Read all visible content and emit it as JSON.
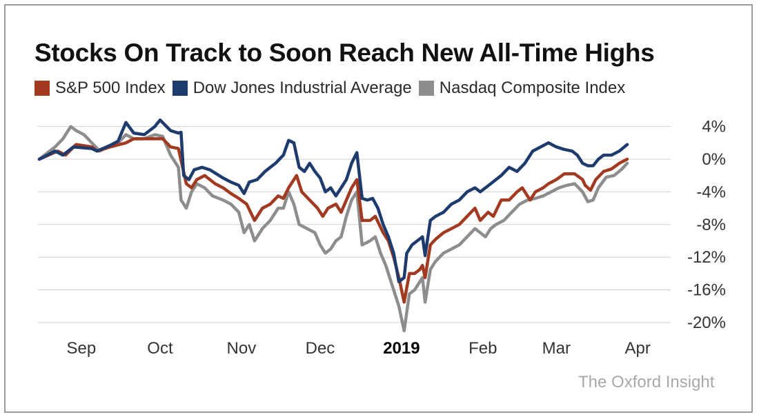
{
  "chart_data": {
    "type": "line",
    "title": "Stocks On Track to Soon Reach New All-Time Highs",
    "xlabel": "",
    "ylabel": "",
    "ylim": [
      -21,
      5
    ],
    "yticks": [
      4,
      0,
      -4,
      -8,
      -12,
      -16,
      -20
    ],
    "ytick_labels": [
      "4%",
      "0%",
      "-4%",
      "-8%",
      "-12%",
      "-16%",
      "-20%"
    ],
    "xlim": [
      0,
      224
    ],
    "xticks": [
      {
        "label": "Sep",
        "x": 16,
        "bold": false
      },
      {
        "label": "Oct",
        "x": 46,
        "bold": false
      },
      {
        "label": "Nov",
        "x": 77,
        "bold": false
      },
      {
        "label": "Dec",
        "x": 107,
        "bold": false
      },
      {
        "label": "2019",
        "x": 138,
        "bold": true
      },
      {
        "label": "Feb",
        "x": 169,
        "bold": false
      },
      {
        "label": "Mar",
        "x": 197,
        "bold": false
      },
      {
        "label": "Apr",
        "x": 228,
        "bold": false
      }
    ],
    "grid": true,
    "legend_position": "top-left",
    "series": [
      {
        "name": "S&P 500 Index",
        "color": "#a13a20",
        "points": [
          [
            0,
            0
          ],
          [
            7,
            1
          ],
          [
            10,
            0.5
          ],
          [
            14,
            1.8
          ],
          [
            20,
            1.5
          ],
          [
            22,
            1
          ],
          [
            27,
            1.5
          ],
          [
            33,
            2
          ],
          [
            36,
            2.5
          ],
          [
            43,
            2.5
          ],
          [
            47,
            2.5
          ],
          [
            50,
            1.5
          ],
          [
            53,
            1.3
          ],
          [
            56,
            -3
          ],
          [
            58,
            -3.5
          ],
          [
            60,
            -2.5
          ],
          [
            63,
            -2
          ],
          [
            67,
            -3
          ],
          [
            70,
            -3.5
          ],
          [
            73,
            -4.2
          ],
          [
            76,
            -4.8
          ],
          [
            79,
            -5.5
          ],
          [
            82,
            -7.5
          ],
          [
            85,
            -6
          ],
          [
            88,
            -5.5
          ],
          [
            91,
            -4.5
          ],
          [
            93,
            -4.8
          ],
          [
            95,
            -3.5
          ],
          [
            98,
            -2
          ],
          [
            100,
            -4
          ],
          [
            103,
            -5
          ],
          [
            106,
            -6
          ],
          [
            108,
            -7
          ],
          [
            110,
            -6
          ],
          [
            113,
            -5.5
          ],
          [
            115,
            -6.5
          ],
          [
            117,
            -5
          ],
          [
            119,
            -3.5
          ],
          [
            121,
            -2.5
          ],
          [
            123,
            -7.5
          ],
          [
            126,
            -7.5
          ],
          [
            128,
            -7
          ],
          [
            131,
            -9
          ],
          [
            133,
            -10
          ],
          [
            135,
            -12
          ],
          [
            137,
            -14.5
          ],
          [
            139,
            -17.5
          ],
          [
            141,
            -14
          ],
          [
            143,
            -14
          ],
          [
            145,
            -13.5
          ],
          [
            146,
            -13
          ],
          [
            147,
            -14.5
          ],
          [
            149,
            -10.5
          ],
          [
            151,
            -9.8
          ],
          [
            154,
            -9
          ],
          [
            157,
            -8.5
          ],
          [
            160,
            -8
          ],
          [
            163,
            -7
          ],
          [
            166,
            -6
          ],
          [
            168,
            -7.5
          ],
          [
            171,
            -6.5
          ],
          [
            173,
            -7
          ],
          [
            176,
            -5
          ],
          [
            179,
            -5
          ],
          [
            182,
            -4
          ],
          [
            184,
            -3.5
          ],
          [
            187,
            -5
          ],
          [
            189,
            -4
          ],
          [
            192,
            -3.5
          ],
          [
            194,
            -3
          ],
          [
            197,
            -2.5
          ],
          [
            200,
            -1.8
          ],
          [
            204,
            -1.8
          ],
          [
            207,
            -2.5
          ],
          [
            208,
            -3.2
          ],
          [
            210,
            -3.8
          ],
          [
            212,
            -2.5
          ],
          [
            215,
            -1.5
          ],
          [
            218,
            -1.2
          ],
          [
            221,
            -0.5
          ],
          [
            224,
            0
          ]
        ]
      },
      {
        "name": "Dow Jones Industrial Average",
        "color": "#1d3b6c",
        "points": [
          [
            0,
            0
          ],
          [
            6,
            1
          ],
          [
            9,
            0.5
          ],
          [
            13,
            1.5
          ],
          [
            20,
            1.3
          ],
          [
            22,
            1
          ],
          [
            27,
            1.7
          ],
          [
            30,
            2.2
          ],
          [
            33,
            4.5
          ],
          [
            36,
            3.2
          ],
          [
            40,
            3
          ],
          [
            44,
            4
          ],
          [
            46,
            4.8
          ],
          [
            50,
            3.5
          ],
          [
            53,
            3.2
          ],
          [
            54,
            3.3
          ],
          [
            55,
            -2
          ],
          [
            57,
            -2.5
          ],
          [
            59,
            -1.3
          ],
          [
            62,
            -1
          ],
          [
            65,
            -1.3
          ],
          [
            70,
            -2.3
          ],
          [
            73,
            -2.8
          ],
          [
            76,
            -3.2
          ],
          [
            78,
            -4.2
          ],
          [
            80,
            -2.8
          ],
          [
            83,
            -2.5
          ],
          [
            86,
            -1.5
          ],
          [
            88,
            -1
          ],
          [
            90,
            -0.5
          ],
          [
            93,
            0.5
          ],
          [
            95,
            2.3
          ],
          [
            97,
            2
          ],
          [
            99,
            -1
          ],
          [
            101,
            -1.5
          ],
          [
            103,
            -0.5
          ],
          [
            105,
            -1.5
          ],
          [
            107,
            -2.3
          ],
          [
            109,
            -4
          ],
          [
            111,
            -3.5
          ],
          [
            113,
            -4.5
          ],
          [
            115,
            -3.5
          ],
          [
            117,
            -2.5
          ],
          [
            119,
            -0.5
          ],
          [
            121,
            0.8
          ],
          [
            123,
            -4.8
          ],
          [
            125,
            -5
          ],
          [
            127,
            -4.8
          ],
          [
            129,
            -6
          ],
          [
            131,
            -8
          ],
          [
            133,
            -9.5
          ],
          [
            135,
            -11.5
          ],
          [
            137,
            -15
          ],
          [
            139,
            -14.5
          ],
          [
            140,
            -11.5
          ],
          [
            142,
            -10.5
          ],
          [
            144,
            -10
          ],
          [
            146,
            -9.5
          ],
          [
            147,
            -11.8
          ],
          [
            149,
            -7.5
          ],
          [
            151,
            -7
          ],
          [
            154,
            -6.5
          ],
          [
            157,
            -5.5
          ],
          [
            160,
            -5
          ],
          [
            163,
            -4
          ],
          [
            166,
            -3.5
          ],
          [
            168,
            -4
          ],
          [
            170,
            -3.5
          ],
          [
            172,
            -3
          ],
          [
            174,
            -2.5
          ],
          [
            176,
            -2
          ],
          [
            179,
            -1
          ],
          [
            182,
            -1.5
          ],
          [
            185,
            -0.5
          ],
          [
            188,
            1
          ],
          [
            191,
            1.5
          ],
          [
            194,
            2
          ],
          [
            197,
            1.5
          ],
          [
            200,
            1.2
          ],
          [
            203,
            1
          ],
          [
            205,
            0.5
          ],
          [
            207,
            -0.5
          ],
          [
            209,
            -0.8
          ],
          [
            211,
            -0.8
          ],
          [
            213,
            0
          ],
          [
            215,
            0.5
          ],
          [
            218,
            0.5
          ],
          [
            221,
            1
          ],
          [
            224,
            1.8
          ]
        ]
      },
      {
        "name": "Nasdaq Composite Index",
        "color": "#8d8d8d",
        "points": [
          [
            0,
            0
          ],
          [
            6,
            1.5
          ],
          [
            9,
            2.5
          ],
          [
            12,
            4
          ],
          [
            14,
            3.5
          ],
          [
            17,
            3
          ],
          [
            20,
            2
          ],
          [
            23,
            1
          ],
          [
            26,
            1.5
          ],
          [
            30,
            2
          ],
          [
            33,
            3
          ],
          [
            36,
            2.5
          ],
          [
            40,
            2.5
          ],
          [
            44,
            3
          ],
          [
            47,
            2.8
          ],
          [
            50,
            0.5
          ],
          [
            52,
            -0.5
          ],
          [
            53,
            -1
          ],
          [
            54,
            -5
          ],
          [
            56,
            -6
          ],
          [
            58,
            -4
          ],
          [
            60,
            -3
          ],
          [
            63,
            -3.5
          ],
          [
            66,
            -4.5
          ],
          [
            70,
            -5
          ],
          [
            73,
            -5.5
          ],
          [
            76,
            -6.5
          ],
          [
            78,
            -9
          ],
          [
            80,
            -8
          ],
          [
            82,
            -10
          ],
          [
            85,
            -8.5
          ],
          [
            88,
            -7.5
          ],
          [
            91,
            -6
          ],
          [
            93,
            -6
          ],
          [
            95,
            -4
          ],
          [
            97,
            -5.5
          ],
          [
            99,
            -8
          ],
          [
            102,
            -8.5
          ],
          [
            105,
            -9
          ],
          [
            107,
            -10.5
          ],
          [
            109,
            -11.5
          ],
          [
            111,
            -11
          ],
          [
            113,
            -10
          ],
          [
            115,
            -9.5
          ],
          [
            117,
            -7
          ],
          [
            119,
            -5
          ],
          [
            121,
            -4
          ],
          [
            123,
            -10.5
          ],
          [
            126,
            -10
          ],
          [
            128,
            -9.5
          ],
          [
            130,
            -11.5
          ],
          [
            132,
            -13
          ],
          [
            134,
            -15
          ],
          [
            137,
            -18
          ],
          [
            139,
            -21
          ],
          [
            141,
            -16.5
          ],
          [
            143,
            -16
          ],
          [
            145,
            -15
          ],
          [
            146,
            -14.5
          ],
          [
            147,
            -17.5
          ],
          [
            149,
            -13.5
          ],
          [
            151,
            -12.5
          ],
          [
            154,
            -11.5
          ],
          [
            157,
            -11
          ],
          [
            160,
            -10.5
          ],
          [
            163,
            -9.5
          ],
          [
            166,
            -8.5
          ],
          [
            168,
            -9
          ],
          [
            170,
            -9.5
          ],
          [
            172,
            -8.5
          ],
          [
            174,
            -8
          ],
          [
            177,
            -7.5
          ],
          [
            180,
            -6.5
          ],
          [
            183,
            -5.5
          ],
          [
            186,
            -5
          ],
          [
            189,
            -4.8
          ],
          [
            192,
            -4.5
          ],
          [
            195,
            -4
          ],
          [
            198,
            -3.5
          ],
          [
            201,
            -3.2
          ],
          [
            204,
            -3
          ],
          [
            207,
            -4
          ],
          [
            209,
            -5.2
          ],
          [
            211,
            -5
          ],
          [
            213,
            -3.5
          ],
          [
            216,
            -2.2
          ],
          [
            219,
            -2
          ],
          [
            222,
            -1.2
          ],
          [
            224,
            -0.5
          ]
        ]
      }
    ]
  },
  "watermark": "The Oxford Insight"
}
